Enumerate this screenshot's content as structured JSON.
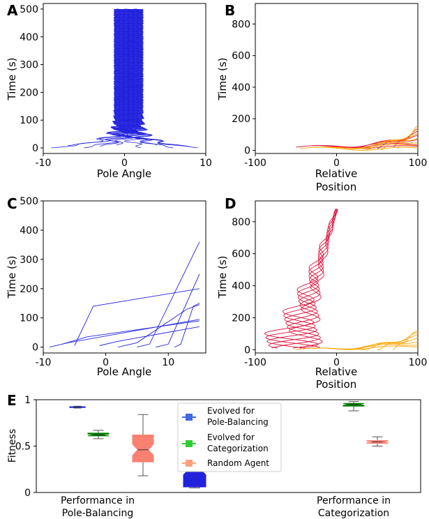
{
  "colors": {
    "blue": "#2222dd",
    "red": "#dc143c",
    "orange": "#ffa500",
    "green": "#008000",
    "salmon": "#fa8072",
    "legblue": "#4169e1",
    "leggreen": "#32cd32",
    "legsalmon": "#ffa07a"
  },
  "chart_data": [
    {
      "panel": "A",
      "type": "line",
      "xlabel": "Pole Angle",
      "ylabel": "Time (s)",
      "xlim": [
        -10,
        10
      ],
      "ylim": [
        520,
        -20
      ],
      "xticks": [
        "-10",
        "0",
        "10"
      ],
      "yticks": [
        "0",
        "100",
        "200",
        "300",
        "400",
        "500"
      ],
      "series": [
        {
          "color": "blue",
          "kind": "converge",
          "starts": [
            [
              -9,
              0
            ],
            [
              -7,
              8
            ],
            [
              -5,
              0
            ],
            [
              -3,
              5
            ],
            [
              -1,
              10
            ],
            [
              2,
              0
            ],
            [
              4,
              10
            ],
            [
              6,
              0
            ],
            [
              8,
              5
            ],
            [
              9,
              0
            ]
          ],
          "center": 0.5,
          "amplitude": 1.8,
          "t_end": 500
        }
      ]
    },
    {
      "panel": "B",
      "type": "line",
      "xlabel": "Relative Position",
      "ylabel": "Time (s)",
      "xlim": [
        -100,
        100
      ],
      "ylim": [
        930,
        -20
      ],
      "xticks": [
        "-100",
        "0",
        "100"
      ],
      "yticks": [
        "0",
        "200",
        "400",
        "600",
        "800"
      ],
      "series": [
        {
          "color": "red",
          "kind": "fan",
          "starts": [
            -50,
            -30,
            -10,
            10,
            30,
            50,
            70
          ],
          "end_x": 100,
          "t_start": 20,
          "t_end": 130
        },
        {
          "color": "orange",
          "kind": "fan",
          "starts": [
            -45,
            -25,
            -5,
            15,
            35,
            55,
            75
          ],
          "end_x": 100,
          "t_start": 10,
          "t_end": 150
        }
      ]
    },
    {
      "panel": "C",
      "type": "line",
      "xlabel": "Pole Angle",
      "ylabel": "Time (s)",
      "xlim": [
        -10,
        16
      ],
      "ylim": [
        500,
        -20
      ],
      "xticks": [
        "-10",
        "0",
        "10"
      ],
      "yticks": [
        "0",
        "100",
        "200",
        "300",
        "400",
        "500"
      ],
      "series": [
        {
          "color": "blue",
          "kind": "fall",
          "paths": [
            [
              [
                -9,
                0
              ],
              [
                -6,
                15
              ],
              [
                15,
                95
              ]
            ],
            [
              [
                -7,
                10
              ],
              [
                -3,
                35
              ],
              [
                15,
                90
              ]
            ],
            [
              [
                -5,
                5
              ],
              [
                -2,
                140
              ],
              [
                15,
                200
              ]
            ],
            [
              [
                -1,
                5
              ],
              [
                2,
                20
              ],
              [
                15,
                70
              ]
            ],
            [
              [
                2,
                0
              ],
              [
                5,
                15
              ],
              [
                13,
                130
              ],
              [
                15,
                145
              ]
            ],
            [
              [
                5,
                0
              ],
              [
                7,
                10
              ],
              [
                15,
                360
              ]
            ],
            [
              [
                8,
                0
              ],
              [
                10,
                10
              ],
              [
                15,
                250
              ]
            ],
            [
              [
                11,
                0
              ],
              [
                12,
                10
              ],
              [
                14,
                140
              ],
              [
                15,
                150
              ]
            ]
          ]
        }
      ]
    },
    {
      "panel": "D",
      "type": "line",
      "xlabel": "Relative Position",
      "ylabel": "Time (s)",
      "xlim": [
        -100,
        100
      ],
      "ylim": [
        930,
        -20
      ],
      "xticks": [
        "-100",
        "0",
        "100"
      ],
      "yticks": [
        "0",
        "200",
        "400",
        "600",
        "800"
      ],
      "series": [
        {
          "color": "red",
          "kind": "spiral",
          "end": [
            0,
            880
          ]
        },
        {
          "color": "orange",
          "kind": "fan",
          "starts": [
            -50,
            -30,
            -10,
            10,
            30,
            50,
            70
          ],
          "end_x": 100,
          "t_start": 0,
          "t_end": 100
        }
      ]
    },
    {
      "panel": "E",
      "type": "box",
      "ylabel": "Fitness",
      "ylim": [
        0,
        1
      ],
      "yticks": [
        "0",
        "0.5",
        "1"
      ],
      "categories": [
        "Performance in Pole-Balancing",
        "Performance in Categorization"
      ],
      "series": [
        {
          "name": "Evolved for Pole-Balancing",
          "color": "blue",
          "boxes": [
            {
              "min": 0.91,
              "q1": 0.915,
              "median": 0.92,
              "q3": 0.925,
              "max": 0.93
            },
            {
              "min": 0.05,
              "q1": 0.06,
              "median": 0.25,
              "q3": 0.5,
              "max": 0.58
            }
          ]
        },
        {
          "name": "Evolved for Categorization",
          "color": "green",
          "boxes": [
            {
              "min": 0.58,
              "q1": 0.61,
              "median": 0.62,
              "q3": 0.64,
              "max": 0.67
            },
            {
              "min": 0.88,
              "q1": 0.93,
              "median": 0.95,
              "q3": 0.96,
              "max": 0.98
            }
          ]
        },
        {
          "name": "Random Agent",
          "color": "salmon",
          "boxes": [
            {
              "min": 0.18,
              "q1": 0.33,
              "median": 0.46,
              "q3": 0.62,
              "max": 0.84
            },
            {
              "min": 0.5,
              "q1": 0.53,
              "median": 0.545,
              "q3": 0.56,
              "max": 0.6
            }
          ]
        }
      ],
      "legend": "center"
    }
  ]
}
